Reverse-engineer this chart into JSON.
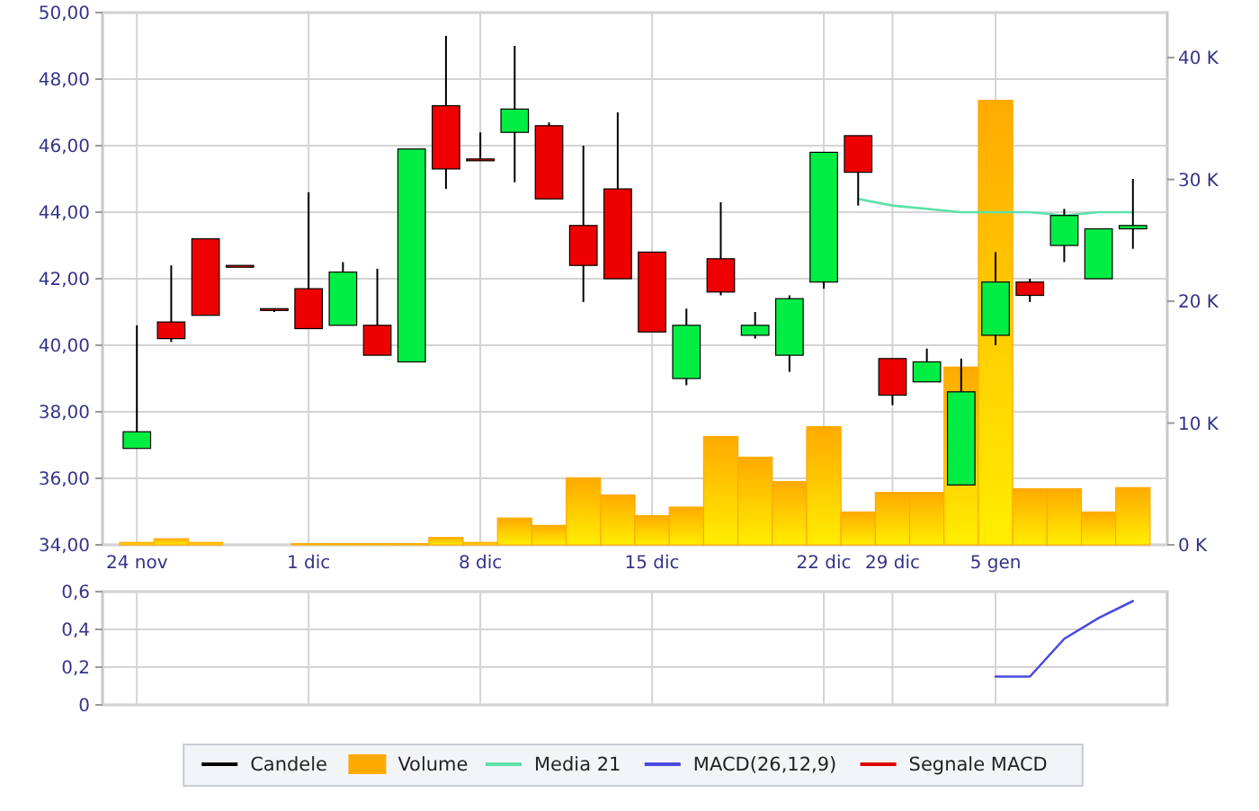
{
  "chart_data": [
    {
      "type": "candlestick",
      "categories": [
        "24 nov",
        null,
        null,
        null,
        null,
        "1 dic",
        null,
        null,
        null,
        null,
        "8 dic",
        null,
        null,
        null,
        null,
        "15 dic",
        null,
        null,
        null,
        null,
        "22 dic",
        null,
        "29 dic",
        null,
        null,
        "5 gen",
        null,
        null,
        null,
        null
      ],
      "series": [
        {
          "name": "Candele",
          "type": "candlestick",
          "color": "#000000",
          "colors": [
            "#00ee44",
            "#ee0000",
            "#ee0000",
            "#ee0000",
            "#ee0000",
            "#ee0000",
            "#00ee44",
            "#ee0000",
            "#00ee44",
            "#ee0000",
            "#ee0000",
            "#00ee44",
            "#ee0000",
            "#ee0000",
            "#ee0000",
            "#ee0000",
            "#00ee44",
            "#ee0000",
            "#00ee44",
            "#00ee44",
            "#00ee44",
            "#ee0000",
            "#ee0000",
            "#00ee44",
            "#00ee44",
            "#00ee44",
            "#ee0000",
            "#00ee44",
            "#00ee44",
            "#00ee44"
          ],
          "ohlc": [
            [
              36.9,
              40.6,
              36.9,
              37.4
            ],
            [
              40.7,
              42.4,
              40.1,
              40.2
            ],
            [
              43.2,
              43.2,
              40.9,
              40.9
            ],
            [
              42.4,
              42.4,
              42.4,
              42.4
            ],
            [
              41.1,
              41.1,
              41.0,
              41.1
            ],
            [
              41.7,
              44.6,
              40.5,
              40.5
            ],
            [
              40.6,
              42.5,
              40.6,
              42.2
            ],
            [
              40.6,
              42.3,
              39.7,
              39.7
            ],
            [
              39.5,
              45.9,
              39.5,
              45.9
            ],
            [
              47.2,
              49.3,
              44.7,
              45.3
            ],
            [
              45.6,
              46.4,
              45.6,
              45.6
            ],
            [
              46.4,
              49.0,
              44.9,
              47.1
            ],
            [
              46.6,
              46.7,
              44.4,
              44.4
            ],
            [
              43.6,
              46.0,
              41.3,
              42.4
            ],
            [
              44.7,
              47.0,
              42.0,
              42.0
            ],
            [
              42.8,
              42.8,
              40.4,
              40.4
            ],
            [
              39.0,
              41.1,
              38.8,
              40.6
            ],
            [
              42.6,
              44.3,
              41.5,
              41.6
            ],
            [
              40.3,
              41.0,
              40.2,
              40.6
            ],
            [
              39.7,
              41.5,
              39.2,
              41.4
            ],
            [
              41.9,
              45.8,
              41.7,
              45.8
            ],
            [
              46.3,
              46.3,
              44.2,
              45.2
            ],
            [
              39.6,
              39.6,
              38.2,
              38.5
            ],
            [
              38.9,
              39.9,
              38.9,
              39.5
            ],
            [
              35.8,
              39.6,
              35.8,
              38.6
            ],
            [
              40.3,
              42.8,
              40.0,
              41.9
            ],
            [
              41.9,
              42.0,
              41.3,
              41.5
            ],
            [
              43.0,
              44.1,
              42.5,
              43.9
            ],
            [
              42.0,
              43.5,
              42.0,
              43.5
            ],
            [
              43.5,
              45.0,
              42.9,
              43.6
            ]
          ]
        },
        {
          "name": "Volume",
          "type": "bar",
          "axis": "y2",
          "color": "#ffaa00",
          "values": [
            0.2,
            0.5,
            0.2,
            0,
            0,
            0.1,
            0.1,
            0.1,
            0.1,
            0.6,
            0.2,
            2.2,
            1.6,
            5.5,
            4.1,
            2.4,
            3.1,
            8.9,
            7.2,
            5.2,
            9.7,
            2.7,
            4.3,
            4.3,
            14.6,
            36.5,
            4.6,
            4.6,
            2.7,
            4.7
          ]
        },
        {
          "name": "Media 21",
          "type": "line",
          "color": "#5ee0a8",
          "values": [
            null,
            null,
            null,
            null,
            null,
            null,
            null,
            null,
            null,
            null,
            null,
            null,
            null,
            null,
            null,
            null,
            null,
            null,
            null,
            null,
            null,
            44.4,
            44.2,
            44.1,
            44.0,
            44.0,
            44.0,
            43.9,
            44.0,
            44.0
          ]
        }
      ],
      "ylim": [
        34,
        50
      ],
      "yticks": [
        {
          "value": 34,
          "label": "34,00"
        },
        {
          "value": 36,
          "label": "36,00"
        },
        {
          "value": 38,
          "label": "38,00"
        },
        {
          "value": 40,
          "label": "40,00"
        },
        {
          "value": 42,
          "label": "42,00"
        },
        {
          "value": 44,
          "label": "44,00"
        },
        {
          "value": 46,
          "label": "46,00"
        },
        {
          "value": 48,
          "label": "48,00"
        },
        {
          "value": 50,
          "label": "50,00"
        }
      ],
      "y2lim": [
        0,
        43.7
      ],
      "y2ticks": [
        {
          "value": 0,
          "label": "0 K"
        },
        {
          "value": 10,
          "label": "10 K"
        },
        {
          "value": 20,
          "label": "20 K"
        },
        {
          "value": 30,
          "label": "30 K"
        },
        {
          "value": 40,
          "label": "40 K"
        }
      ],
      "grid": true,
      "legend": "bottom"
    },
    {
      "type": "line",
      "categories": [
        null,
        null,
        null,
        null,
        null,
        null,
        null,
        null,
        null,
        null,
        null,
        null,
        null,
        null,
        null,
        null,
        null,
        null,
        null,
        null,
        null,
        null,
        null,
        null,
        null,
        null,
        null,
        null,
        null,
        null
      ],
      "series": [
        {
          "name": "MACD(26,12,9)",
          "color": "#4a4ae0",
          "values": [
            null,
            null,
            null,
            null,
            null,
            null,
            null,
            null,
            null,
            null,
            null,
            null,
            null,
            null,
            null,
            null,
            null,
            null,
            null,
            null,
            null,
            null,
            null,
            null,
            null,
            0.15,
            0.15,
            0.35,
            0.46,
            0.55
          ]
        },
        {
          "name": "Segnale MACD",
          "color": "#dd0000",
          "values": [
            null,
            null,
            null,
            null,
            null,
            null,
            null,
            null,
            null,
            null,
            null,
            null,
            null,
            null,
            null,
            null,
            null,
            null,
            null,
            null,
            null,
            null,
            null,
            null,
            null,
            null,
            null,
            null,
            null,
            null
          ]
        }
      ],
      "ylim": [
        0,
        0.6
      ],
      "yticks": [
        0,
        {
          "value": 0.2,
          "label": "0,2"
        },
        {
          "value": 0.4,
          "label": "0,4"
        },
        {
          "value": 0.6,
          "label": "0,6"
        }
      ],
      "tick_labels": "y",
      "grid": true,
      "legend": "bottom"
    }
  ]
}
